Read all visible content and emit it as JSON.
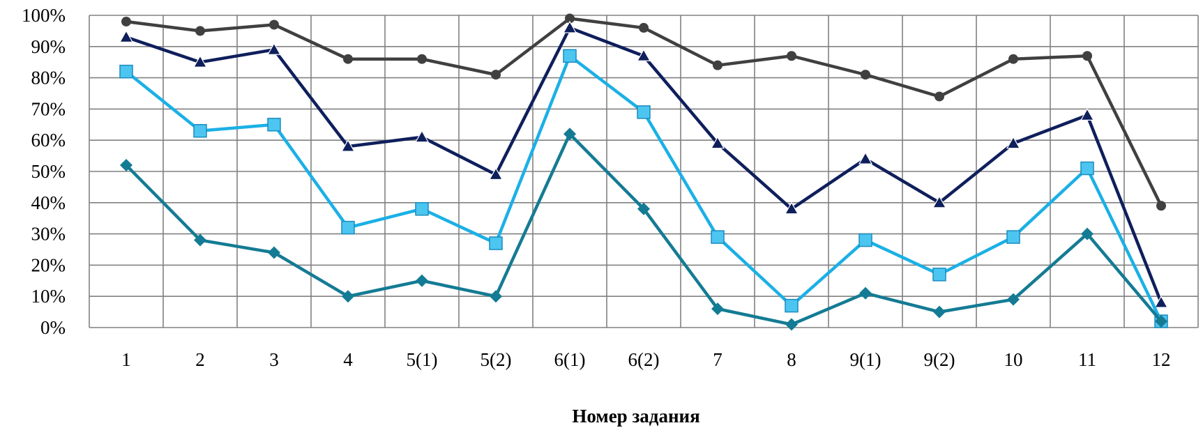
{
  "chart_data": {
    "type": "line",
    "title": "",
    "xlabel": "Номер задания",
    "ylabel": "",
    "categories": [
      "1",
      "2",
      "3",
      "4",
      "5(1)",
      "5(2)",
      "6(1)",
      "6(2)",
      "7",
      "8",
      "9(1)",
      "9(2)",
      "10",
      "11",
      "12"
    ],
    "y_ticks": [
      "0%",
      "10%",
      "20%",
      "30%",
      "40%",
      "50%",
      "60%",
      "70%",
      "80%",
      "90%",
      "100%"
    ],
    "ylim": [
      0,
      100
    ],
    "grid": true,
    "legend": "none",
    "series": [
      {
        "color": "#404040",
        "marker": "circle",
        "values": [
          98,
          95,
          97,
          86,
          86,
          81,
          99,
          96,
          84,
          87,
          81,
          74,
          86,
          87,
          39
        ]
      },
      {
        "color": "#0f1f5c",
        "marker": "triangle",
        "values": [
          93,
          85,
          89,
          58,
          61,
          49,
          96,
          87,
          59,
          38,
          54,
          40,
          59,
          68,
          8
        ]
      },
      {
        "color": "#1bb0e6",
        "marker": "square",
        "values": [
          82,
          63,
          65,
          32,
          38,
          27,
          87,
          69,
          29,
          7,
          28,
          17,
          29,
          51,
          2
        ]
      },
      {
        "color": "#147b94",
        "marker": "diamond",
        "values": [
          52,
          28,
          24,
          10,
          15,
          10,
          62,
          38,
          6,
          1,
          11,
          5,
          9,
          30,
          2
        ]
      }
    ]
  }
}
